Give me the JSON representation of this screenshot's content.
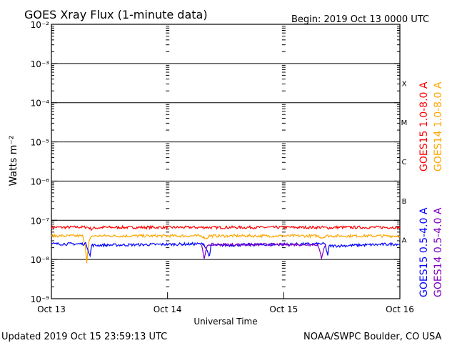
{
  "header": {
    "title": "GOES Xray Flux (1-minute data)",
    "begin": "Begin:  2019 Oct 13 0000 UTC"
  },
  "footer": {
    "updated": "Updated 2019 Oct 15 23:59:13 UTC",
    "source": "NOAA/SWPC Boulder, CO USA"
  },
  "chart_data": {
    "type": "line",
    "title": "GOES Xray Flux (1-minute data)",
    "xlabel": "Universal Time",
    "ylabel": "Watts m⁻²",
    "yscale": "log",
    "ylim": [
      1e-09,
      0.01
    ],
    "xlim": [
      0,
      72
    ],
    "x_ticks": [
      {
        "x": 0,
        "label": "Oct 13"
      },
      {
        "x": 24,
        "label": "Oct 14"
      },
      {
        "x": 48,
        "label": "Oct 15"
      },
      {
        "x": 72,
        "label": "Oct 16"
      }
    ],
    "y_ticks": [
      {
        "exp": -9,
        "label": "10⁻⁹"
      },
      {
        "exp": -8,
        "label": "10⁻⁸"
      },
      {
        "exp": -7,
        "label": "10⁻⁷"
      },
      {
        "exp": -6,
        "label": "10⁻⁶"
      },
      {
        "exp": -5,
        "label": "10⁻⁵"
      },
      {
        "exp": -4,
        "label": "10⁻⁴"
      },
      {
        "exp": -3,
        "label": "10⁻³"
      },
      {
        "exp": -2,
        "label": "10⁻²"
      }
    ],
    "flare_classes": [
      {
        "label": "A",
        "exp": -7.5
      },
      {
        "label": "B",
        "exp": -6.5
      },
      {
        "label": "C",
        "exp": -5.5
      },
      {
        "label": "M",
        "exp": -4.5
      },
      {
        "label": "X",
        "exp": -3.5
      }
    ],
    "x_unit": "hours since 2019 Oct 13 0000 UTC",
    "series": [
      {
        "name": "GOES15 1.0-8.0 A",
        "color": "#ff0000",
        "points": [
          [
            0,
            6.6e-08
          ],
          [
            7.5,
            6.7e-08
          ],
          [
            8.2,
            6e-08
          ],
          [
            9,
            6.4e-08
          ],
          [
            11,
            6.6e-08
          ],
          [
            32,
            6.6e-08
          ],
          [
            34,
            6.5e-08
          ],
          [
            36,
            6.6e-08
          ],
          [
            56,
            6.6e-08
          ],
          [
            57.3,
            6.4e-08
          ],
          [
            59,
            6.6e-08
          ],
          [
            72,
            6.6e-08
          ]
        ]
      },
      {
        "name": "GOES14 1.0-8.0 A",
        "color": "#ffa500",
        "points": [
          [
            0,
            4e-08
          ],
          [
            6.4,
            4e-08
          ],
          [
            7,
            2.4e-08
          ],
          [
            7.3,
            8e-09
          ],
          [
            7.7,
            2.6e-08
          ],
          [
            8.3,
            4e-08
          ],
          [
            31,
            4e-08
          ],
          [
            32,
            3.4e-08
          ],
          [
            32.6,
            4e-08
          ],
          [
            55,
            4e-08
          ],
          [
            56,
            3.6e-08
          ],
          [
            56.6,
            4e-08
          ],
          [
            72,
            4e-08
          ]
        ]
      },
      {
        "name": "GOES15 0.5-4.0 A",
        "color": "#0000ff",
        "points": [
          [
            0,
            2.5e-08
          ],
          [
            7.2,
            2.5e-08
          ],
          [
            8.0,
            1.2e-08
          ],
          [
            8.3,
            2.3e-08
          ],
          [
            31.5,
            2.5e-08
          ],
          [
            32.7,
            1.2e-08
          ],
          [
            33,
            2.3e-08
          ],
          [
            56.5,
            2.5e-08
          ],
          [
            57.1,
            1.3e-08
          ],
          [
            57.4,
            2.2e-08
          ],
          [
            72,
            2.5e-08
          ]
        ]
      },
      {
        "name": "GOES14 0.5-4.0 A",
        "color": "#8000c0",
        "points": [
          [
            31,
            2.4e-08
          ],
          [
            31.4,
            1.4e-08
          ],
          [
            31.6,
            1e-08
          ],
          [
            32.0,
            1.8e-08
          ],
          [
            32.4,
            2.4e-08
          ],
          [
            55.0,
            2.4e-08
          ],
          [
            55.5,
            1.5e-08
          ],
          [
            55.8,
            1.1e-08
          ],
          [
            56.3,
            2e-08
          ],
          [
            56.7,
            2.4e-08
          ]
        ]
      }
    ],
    "legend_placement": "right, vertical"
  }
}
